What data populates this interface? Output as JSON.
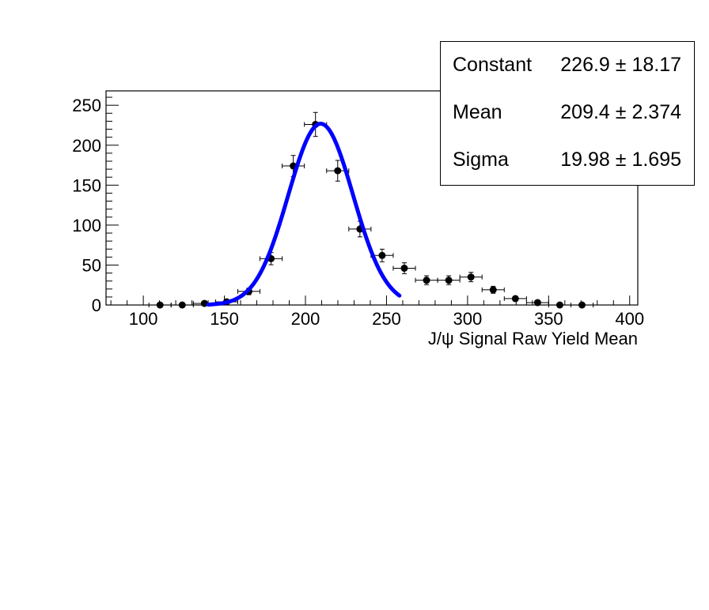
{
  "chart_data": {
    "type": "scatter",
    "title": "",
    "xlabel": "J/ψ Signal Raw Yield Mean",
    "ylabel": "",
    "xlim": [
      77,
      405
    ],
    "ylim": [
      0,
      268
    ],
    "x_ticks": [
      "100",
      "150",
      "200",
      "250",
      "300",
      "350",
      "400"
    ],
    "y_ticks": [
      "0",
      "50",
      "100",
      "150",
      "200",
      "250"
    ],
    "bin_width": 13.7,
    "series": [
      {
        "kind": "points_with_errors",
        "x": [
          110.3,
          124.0,
          137.7,
          151.4,
          165.1,
          178.8,
          192.5,
          206.2,
          219.9,
          233.6,
          247.3,
          261.0,
          274.7,
          288.4,
          302.1,
          315.8,
          329.5,
          343.2,
          356.9,
          370.6
        ],
        "y": [
          0,
          0,
          2,
          4,
          17,
          58,
          174,
          226,
          168,
          95,
          62,
          46,
          31,
          31,
          35,
          19,
          8,
          3,
          0,
          0
        ]
      },
      {
        "kind": "gaussian_fit",
        "color": "#0000ff",
        "constant": 226.9,
        "mean": 209.4,
        "sigma": 19.98,
        "x_range": [
          140,
          258
        ]
      }
    ],
    "grid": false,
    "legend": "top-right"
  },
  "stats": {
    "rows": [
      {
        "name": "Constant",
        "value": "226.9 ± 18.17"
      },
      {
        "name": "Mean",
        "value": "209.4 ± 2.374"
      },
      {
        "name": "Sigma",
        "value": "19.98 ± 1.695"
      }
    ]
  }
}
